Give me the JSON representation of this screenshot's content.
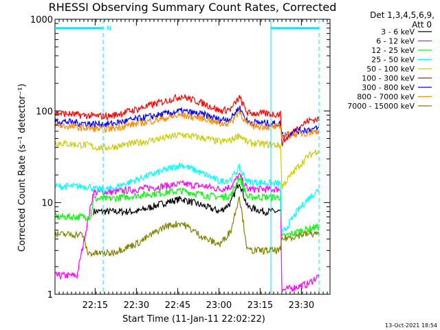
{
  "chart_data": {
    "type": "line",
    "title": "RHESSI Observing Summary Count Rates, Corrected",
    "ylabel": "Corrected Count Rate (s⁻¹ detector⁻¹)",
    "xlabel": "Start Time (11-Jan-11 22:02:22)",
    "y_scale": "log",
    "ylim": [
      1,
      1000
    ],
    "y_ticks": [
      {
        "value": 1,
        "label": "1"
      },
      {
        "value": 10,
        "label": "10"
      },
      {
        "value": 100,
        "label": "100"
      },
      {
        "value": 1000,
        "label": "1000"
      }
    ],
    "x_range_min": [
      0,
      100
    ],
    "x_ticks": [
      {
        "value": 14.6,
        "label": "22:15"
      },
      {
        "value": 29.6,
        "label": "22:30"
      },
      {
        "value": 44.6,
        "label": "22:45"
      },
      {
        "value": 59.6,
        "label": "23:00"
      },
      {
        "value": 74.6,
        "label": "23:15"
      },
      {
        "value": 89.6,
        "label": "23:30"
      }
    ],
    "legend_header": [
      "Det 1,3,4,5,6,9,",
      "Att 0"
    ],
    "legend_position": "right",
    "grid": false,
    "annotation": {
      "label": "N",
      "color": "#00e5ff"
    },
    "series": [
      {
        "name": "3 - 6 keV",
        "color": "#000000",
        "points": [
          [
            14,
            8
          ],
          [
            20,
            8
          ],
          [
            30,
            8
          ],
          [
            40,
            10
          ],
          [
            46,
            11
          ],
          [
            55,
            9
          ],
          [
            60,
            8
          ],
          [
            64,
            10
          ],
          [
            67,
            17
          ],
          [
            70,
            9
          ],
          [
            76,
            8
          ],
          [
            82,
            8
          ]
        ]
      },
      {
        "name": "6 - 12 keV",
        "color": "#ff00ff",
        "points": [
          [
            0,
            1.6
          ],
          [
            8,
            1.6
          ],
          [
            14,
            13
          ],
          [
            20,
            13
          ],
          [
            30,
            14
          ],
          [
            46,
            16
          ],
          [
            55,
            15
          ],
          [
            60,
            14
          ],
          [
            64,
            15
          ],
          [
            67,
            20
          ],
          [
            70,
            14
          ],
          [
            82,
            14
          ],
          [
            82.5,
            1.1
          ],
          [
            92,
            1.3
          ],
          [
            96,
            1.6
          ]
        ]
      },
      {
        "name": "12 - 25 keV",
        "color": "#00ff00",
        "points": [
          [
            0,
            7
          ],
          [
            13,
            7
          ],
          [
            14,
            11
          ],
          [
            20,
            11
          ],
          [
            30,
            12
          ],
          [
            46,
            13.5
          ],
          [
            55,
            12
          ],
          [
            60,
            11.5
          ],
          [
            64,
            12
          ],
          [
            67,
            19
          ],
          [
            70,
            11.5
          ],
          [
            82,
            11.5
          ],
          [
            82.5,
            4.2
          ],
          [
            90,
            5
          ],
          [
            96,
            5.5
          ]
        ]
      },
      {
        "name": "25 - 50 keV",
        "color": "#00ffff",
        "points": [
          [
            0,
            15
          ],
          [
            13,
            15
          ],
          [
            14,
            14
          ],
          [
            20,
            14
          ],
          [
            30,
            18
          ],
          [
            46,
            26
          ],
          [
            55,
            20
          ],
          [
            60,
            17
          ],
          [
            64,
            18
          ],
          [
            67,
            24
          ],
          [
            70,
            17
          ],
          [
            82,
            16
          ],
          [
            82.5,
            4.5
          ],
          [
            88,
            8
          ],
          [
            92,
            11
          ],
          [
            96,
            14
          ]
        ]
      },
      {
        "name": "50 - 100 keV",
        "color": "#cccc00",
        "points": [
          [
            0,
            45
          ],
          [
            13,
            42
          ],
          [
            14,
            40
          ],
          [
            20,
            40
          ],
          [
            30,
            45
          ],
          [
            46,
            55
          ],
          [
            55,
            50
          ],
          [
            60,
            46
          ],
          [
            64,
            48
          ],
          [
            67,
            55
          ],
          [
            70,
            45
          ],
          [
            82,
            42
          ],
          [
            82.5,
            15
          ],
          [
            88,
            24
          ],
          [
            92,
            32
          ],
          [
            96,
            38
          ]
        ]
      },
      {
        "name": "100 - 300 keV",
        "color": "#ff0000",
        "points": [
          [
            0,
            95
          ],
          [
            14,
            88
          ],
          [
            20,
            88
          ],
          [
            30,
            105
          ],
          [
            46,
            145
          ],
          [
            55,
            118
          ],
          [
            60,
            100
          ],
          [
            64,
            105
          ],
          [
            67,
            140
          ],
          [
            70,
            95
          ],
          [
            82,
            92
          ],
          [
            82.5,
            45
          ],
          [
            88,
            65
          ],
          [
            92,
            78
          ],
          [
            96,
            82
          ]
        ]
      },
      {
        "name": "300 - 800 keV",
        "color": "#0000ff",
        "points": [
          [
            0,
            78
          ],
          [
            14,
            72
          ],
          [
            20,
            72
          ],
          [
            30,
            82
          ],
          [
            46,
            100
          ],
          [
            55,
            90
          ],
          [
            60,
            80
          ],
          [
            64,
            83
          ],
          [
            67,
            110
          ],
          [
            70,
            76
          ],
          [
            82,
            72
          ],
          [
            82.5,
            55
          ],
          [
            90,
            62
          ],
          [
            96,
            64
          ]
        ]
      },
      {
        "name": "800 - 7000 keV",
        "color": "#ff8c00",
        "points": [
          [
            0,
            70
          ],
          [
            14,
            64
          ],
          [
            20,
            64
          ],
          [
            30,
            73
          ],
          [
            46,
            90
          ],
          [
            55,
            82
          ],
          [
            60,
            72
          ],
          [
            64,
            75
          ],
          [
            67,
            100
          ],
          [
            70,
            70
          ],
          [
            82,
            66
          ],
          [
            82.5,
            54
          ],
          [
            90,
            57
          ],
          [
            96,
            60
          ]
        ]
      },
      {
        "name": "7000 - 15000 keV",
        "color": "#808000",
        "points": [
          [
            0,
            4.5
          ],
          [
            10,
            4.5
          ],
          [
            12,
            2.8
          ],
          [
            20,
            2.8
          ],
          [
            30,
            3.6
          ],
          [
            40,
            5.5
          ],
          [
            46,
            6
          ],
          [
            55,
            4
          ],
          [
            60,
            3.5
          ],
          [
            64,
            5
          ],
          [
            67,
            12
          ],
          [
            70,
            3
          ],
          [
            82,
            3
          ],
          [
            82.5,
            4
          ],
          [
            90,
            4.5
          ],
          [
            96,
            4.6
          ]
        ]
      }
    ]
  },
  "footer_timestamp": "13-Oct-2021 18:54"
}
